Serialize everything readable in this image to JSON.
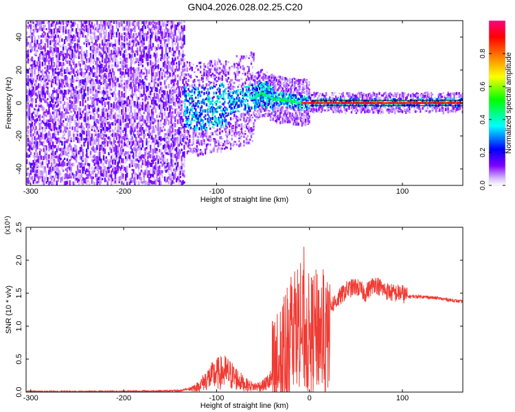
{
  "title": "GN04.2026.028.02.25.C20",
  "chart_data": [
    {
      "type": "heatmap",
      "xlabel": "Height of straight line (km)",
      "ylabel": "Frequency (Hz)",
      "xlim": [
        -305,
        165
      ],
      "ylim": [
        -50,
        50
      ],
      "x_ticks": [
        -300,
        -200,
        -100,
        0,
        100
      ],
      "y_ticks": [
        -40,
        -20,
        0,
        20,
        40
      ],
      "grid": false,
      "colorbar": {
        "label": "Normalized spectral amplitude",
        "ticks": [
          0.0,
          0.2,
          0.4,
          0.6,
          0.8
        ],
        "range": [
          0,
          1
        ],
        "colors": [
          "#ffffff",
          "#8000ff",
          "#0000ff",
          "#00ffff",
          "#00ff00",
          "#ffff00",
          "#ff8000",
          "#ff0000",
          "#ff0080"
        ]
      },
      "center_frequency_track": [
        [
          -135,
          -3
        ],
        [
          -120,
          -4
        ],
        [
          -100,
          -2
        ],
        [
          -80,
          0
        ],
        [
          -70,
          2
        ],
        [
          -60,
          3
        ],
        [
          -52,
          6
        ],
        [
          -45,
          4
        ],
        [
          -38,
          2
        ],
        [
          -30,
          2
        ],
        [
          -20,
          1
        ],
        [
          -10,
          0
        ],
        [
          0,
          0
        ],
        [
          20,
          0
        ],
        [
          40,
          0
        ],
        [
          60,
          0
        ],
        [
          80,
          0
        ],
        [
          100,
          0
        ],
        [
          165,
          0
        ]
      ],
      "noise_region_x": [
        -305,
        -135
      ]
    },
    {
      "type": "line",
      "xlabel": "Height of straight line (km)",
      "ylabel": "SNR (10 * v/v)",
      "y_multiplier": "(x10⁴)",
      "xlim": [
        -305,
        165
      ],
      "ylim": [
        0,
        2.5
      ],
      "x_ticks": [
        -300,
        -200,
        -100,
        0,
        100
      ],
      "y_ticks": [
        0.0,
        0.5,
        1.0,
        1.5,
        2.0,
        2.5
      ],
      "grid": false,
      "series_color": "#ef3b33",
      "x": [
        -305,
        -200,
        -140,
        -120,
        -110,
        -100,
        -90,
        -80,
        -70,
        -60,
        -50,
        -40,
        -30,
        -25,
        -20,
        -15,
        -10,
        -5,
        0,
        5,
        10,
        15,
        20,
        22,
        30,
        40,
        50,
        60,
        70,
        80,
        90,
        100,
        105,
        120,
        140,
        165
      ],
      "y": [
        0.01,
        0.01,
        0.02,
        0.08,
        0.2,
        0.28,
        0.3,
        0.22,
        0.12,
        0.08,
        0.1,
        0.2,
        0.45,
        0.7,
        1.0,
        1.1,
        1.0,
        0.9,
        0.85,
        0.9,
        0.95,
        0.85,
        0.75,
        1.3,
        1.4,
        1.55,
        1.6,
        1.5,
        1.65,
        1.55,
        1.5,
        1.5,
        1.45,
        1.45,
        1.42,
        1.37
      ]
    }
  ]
}
